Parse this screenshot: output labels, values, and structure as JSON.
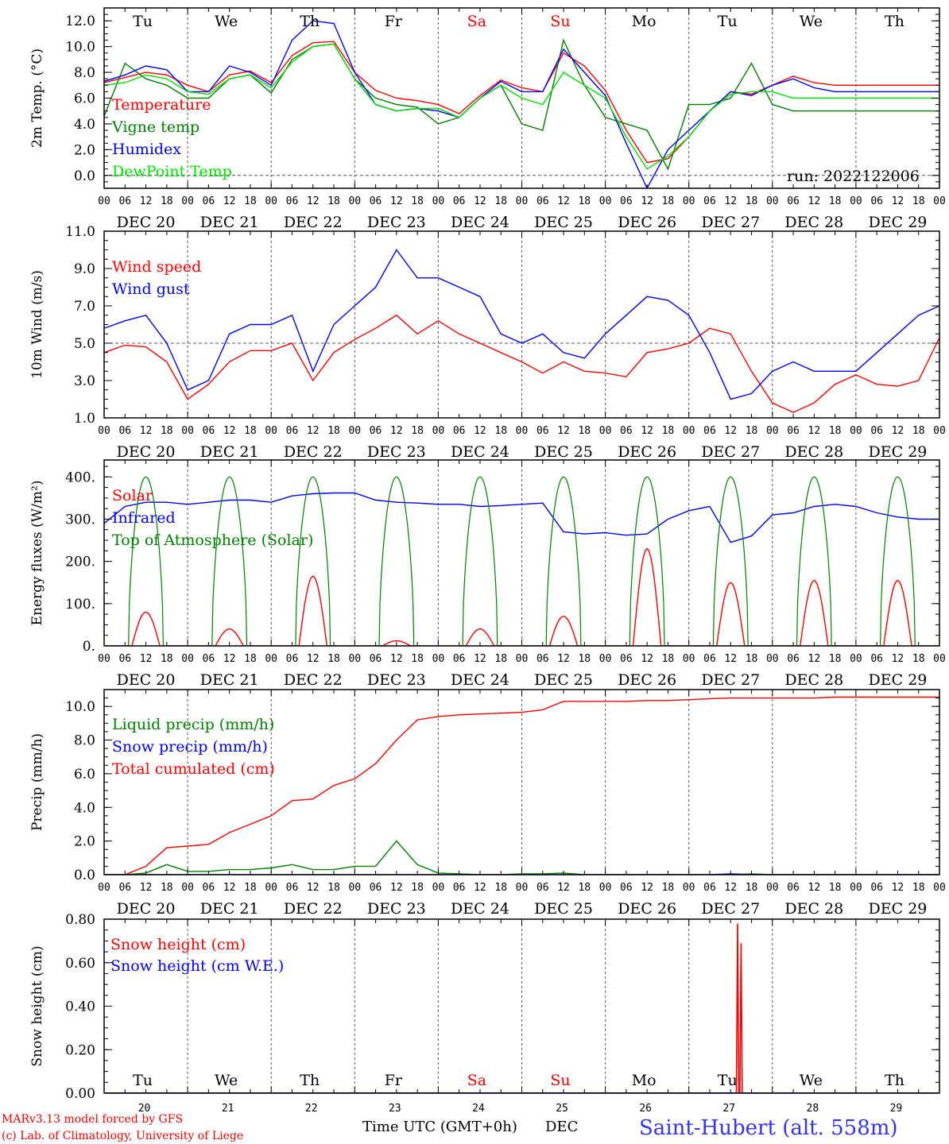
{
  "run_label": "run: 2022122006",
  "footer": {
    "credit_line1": "MARv3.13 model forced by GFS",
    "credit_line2": "(c) Lab. of Climatology, University of Liege",
    "xlabel": "Time UTC (GMT+0h)",
    "xunit": "DEC",
    "station": "Saint-Hubert (alt. 558m)"
  },
  "days": [
    {
      "abbr": "Tu",
      "date": "DEC 20",
      "num": "20",
      "weekend": false
    },
    {
      "abbr": "We",
      "date": "DEC 21",
      "num": "21",
      "weekend": false
    },
    {
      "abbr": "Th",
      "date": "DEC 22",
      "num": "22",
      "weekend": false
    },
    {
      "abbr": "Fr",
      "date": "DEC 23",
      "num": "23",
      "weekend": false
    },
    {
      "abbr": "Sa",
      "date": "DEC 24",
      "num": "24",
      "weekend": true
    },
    {
      "abbr": "Su",
      "date": "DEC 25",
      "num": "25",
      "weekend": true
    },
    {
      "abbr": "Mo",
      "date": "DEC 26",
      "num": "26",
      "weekend": false
    },
    {
      "abbr": "Tu",
      "date": "DEC 27",
      "num": "27",
      "weekend": false
    },
    {
      "abbr": "We",
      "date": "DEC 28",
      "num": "28",
      "weekend": false
    },
    {
      "abbr": "Th",
      "date": "DEC 29",
      "num": "29",
      "weekend": false
    }
  ],
  "hour_ticks": [
    "00",
    "06",
    "12",
    "18"
  ],
  "final_tick": "00",
  "colors": {
    "red": "#ff0000",
    "green": "#008000",
    "blue": "#0000ff",
    "lightgreen": "#00e000",
    "purple": "#800080",
    "weekend": "#ff0000",
    "station": "#3333ff"
  },
  "chart_data": [
    {
      "type": "line",
      "ylabel": "2m Temp. (°C)",
      "ylim": [
        -1,
        13
      ],
      "yticks": [
        0,
        2,
        4,
        6,
        8,
        10,
        12
      ],
      "ytick_labels": [
        "0.0",
        "2.0",
        "4.0",
        "6.0",
        "8.0",
        "10.0",
        "12.0"
      ],
      "dashed_ref": 0,
      "show_day_abbr_top": true,
      "x_hours": [
        0,
        6,
        12,
        18,
        24,
        30,
        36,
        42,
        48,
        54,
        60,
        66,
        72,
        78,
        84,
        90,
        96,
        102,
        108,
        114,
        120,
        126,
        132,
        138,
        144,
        150,
        156,
        162,
        168,
        174,
        180,
        186,
        192,
        198,
        204,
        210,
        216,
        222,
        228,
        234,
        240
      ],
      "series": [
        {
          "name": "Temperature",
          "color": "#ff0000",
          "values": [
            7.2,
            7.6,
            8.0,
            7.8,
            7.0,
            6.5,
            7.8,
            8.1,
            7.2,
            9.3,
            10.3,
            10.4,
            8.0,
            6.6,
            6.0,
            5.8,
            5.5,
            4.8,
            6.2,
            7.4,
            6.8,
            6.5,
            9.5,
            8.5,
            6.6,
            3.5,
            1.0,
            1.3,
            3.0,
            5.0,
            6.5,
            6.3,
            7.0,
            7.7,
            7.2,
            7.0,
            7.0,
            7.0,
            7.0,
            7.0,
            7.0
          ]
        },
        {
          "name": "Vigne temp",
          "color": "#008000",
          "values": [
            4.6,
            8.7,
            7.5,
            7.0,
            6.0,
            6.0,
            7.5,
            7.8,
            6.4,
            9.0,
            10.0,
            10.2,
            7.5,
            6.0,
            5.5,
            5.3,
            4.0,
            4.5,
            6.0,
            7.0,
            4.0,
            3.5,
            10.5,
            7.0,
            4.5,
            4.0,
            3.5,
            0.5,
            5.5,
            5.5,
            6.0,
            8.7,
            5.5,
            5.0,
            5.0,
            5.0,
            5.0,
            5.0,
            5.0,
            5.0,
            5.0
          ]
        },
        {
          "name": "Humidex",
          "color": "#0000ff",
          "values": [
            7.3,
            7.8,
            8.5,
            8.2,
            6.5,
            6.5,
            8.5,
            8.0,
            7.0,
            10.5,
            12.0,
            11.8,
            8.0,
            5.5,
            5.0,
            5.2,
            5.0,
            4.5,
            6.0,
            7.3,
            6.5,
            6.5,
            9.8,
            8.0,
            6.2,
            2.5,
            -1.0,
            2.0,
            3.5,
            5.0,
            6.5,
            6.2,
            7.0,
            7.5,
            6.8,
            6.5,
            6.5,
            6.5,
            6.5,
            6.5,
            6.5
          ]
        },
        {
          "name": "DewPoint Temp",
          "color": "#00e000",
          "values": [
            7.0,
            7.2,
            7.8,
            7.5,
            6.5,
            6.3,
            7.5,
            7.8,
            6.8,
            8.8,
            10.0,
            10.2,
            7.5,
            5.5,
            5.0,
            5.2,
            5.2,
            4.5,
            6.0,
            7.0,
            6.0,
            5.5,
            8.0,
            7.0,
            6.0,
            3.0,
            0.5,
            1.5,
            3.0,
            5.0,
            6.3,
            6.5,
            6.5,
            6.0,
            6.0,
            6.0,
            6.0,
            6.0,
            6.0,
            6.0,
            6.0
          ]
        }
      ],
      "legend": [
        "Temperature",
        "Vigne temp",
        "Humidex",
        "DewPoint Temp"
      ]
    },
    {
      "type": "line",
      "ylabel": "10m Wind (m/s)",
      "ylim": [
        1,
        11
      ],
      "yticks": [
        1,
        3,
        5,
        7,
        9,
        11
      ],
      "ytick_labels": [
        "1.0",
        "3.0",
        "5.0",
        "7.0",
        "9.0",
        "11.0"
      ],
      "dashed_ref": 5,
      "x_hours": [
        0,
        6,
        12,
        18,
        24,
        30,
        36,
        42,
        48,
        54,
        60,
        66,
        72,
        78,
        84,
        90,
        96,
        102,
        108,
        114,
        120,
        126,
        132,
        138,
        144,
        150,
        156,
        162,
        168,
        174,
        180,
        186,
        192,
        198,
        204,
        210,
        216,
        222,
        228,
        234,
        240
      ],
      "series": [
        {
          "name": "Wind speed",
          "color": "#ff0000",
          "values": [
            4.5,
            4.9,
            4.8,
            4.0,
            2.0,
            2.8,
            4.0,
            4.6,
            4.6,
            5.0,
            3.0,
            4.5,
            5.2,
            5.8,
            6.5,
            5.5,
            6.2,
            5.5,
            5.0,
            4.5,
            4.0,
            3.4,
            4.0,
            3.5,
            3.4,
            3.2,
            4.5,
            4.7,
            5.0,
            5.8,
            5.5,
            3.5,
            1.8,
            1.3,
            1.8,
            2.8,
            3.3,
            2.8,
            2.7,
            3.0,
            5.3
          ]
        },
        {
          "name": "Wind gust",
          "color": "#0000ff",
          "values": [
            5.8,
            6.2,
            6.5,
            5.0,
            2.5,
            3.0,
            5.5,
            6.0,
            6.0,
            6.5,
            3.5,
            6.0,
            7.0,
            8.0,
            10.0,
            8.5,
            8.5,
            8.0,
            7.5,
            5.5,
            5.0,
            5.5,
            4.5,
            4.2,
            5.5,
            6.5,
            7.5,
            7.3,
            6.5,
            4.5,
            2.0,
            2.3,
            3.5,
            4.0,
            3.5,
            3.5,
            3.5,
            4.5,
            5.5,
            6.5,
            7.0
          ]
        }
      ],
      "legend": [
        "Wind speed",
        "Wind gust"
      ]
    },
    {
      "type": "line",
      "ylabel": "Energy fluxes (W/m²)",
      "ylim": [
        0,
        440
      ],
      "yticks": [
        0,
        100,
        200,
        300,
        400
      ],
      "ytick_labels": [
        "0.",
        "100.",
        "200.",
        "300.",
        "400."
      ],
      "x_hours": [
        0,
        6,
        12,
        18,
        24,
        30,
        36,
        42,
        48,
        54,
        60,
        66,
        72,
        78,
        84,
        90,
        96,
        102,
        108,
        114,
        120,
        126,
        132,
        138,
        144,
        150,
        156,
        162,
        168,
        174,
        180,
        186,
        192,
        198,
        204,
        210,
        216,
        222,
        228,
        234,
        240
      ],
      "series": [
        {
          "name": "Solar",
          "color": "#ff0000",
          "peaks": [
            80,
            40,
            165,
            12,
            40,
            70,
            230,
            150,
            155,
            155
          ]
        },
        {
          "name": "Infrared",
          "color": "#0000ff",
          "values": [
            290,
            330,
            340,
            340,
            335,
            340,
            345,
            345,
            340,
            355,
            360,
            362,
            362,
            345,
            340,
            338,
            335,
            335,
            330,
            332,
            335,
            338,
            270,
            265,
            268,
            262,
            265,
            300,
            320,
            330,
            245,
            260,
            310,
            315,
            330,
            335,
            330,
            315,
            305,
            300,
            300
          ]
        },
        {
          "name": "Top of Atmosphere (Solar)",
          "color": "#008000",
          "peak": 400
        }
      ],
      "legend": [
        "Solar",
        "Infrared",
        "Top of Atmosphere (Solar)"
      ]
    },
    {
      "type": "line",
      "ylabel": "Precip (mm/h)",
      "ylim": [
        0,
        11
      ],
      "yticks": [
        0,
        2,
        4,
        6,
        8,
        10
      ],
      "ytick_labels": [
        "0.0",
        "2.0",
        "4.0",
        "6.0",
        "8.0",
        "10.0"
      ],
      "x_hours": [
        0,
        6,
        12,
        18,
        24,
        30,
        36,
        42,
        48,
        54,
        60,
        66,
        72,
        78,
        84,
        90,
        96,
        102,
        108,
        114,
        120,
        126,
        132,
        138,
        144,
        150,
        156,
        162,
        168,
        174,
        180,
        186,
        192,
        198,
        204,
        210,
        216,
        222,
        228,
        234,
        240
      ],
      "series": [
        {
          "name": "Liquid precip (mm/h)",
          "color": "#008000",
          "values": [
            0,
            0,
            0.1,
            0.6,
            0.2,
            0.2,
            0.3,
            0.3,
            0.4,
            0.6,
            0.3,
            0.3,
            0.5,
            0.5,
            2.0,
            0.6,
            0.1,
            0.05,
            0,
            0,
            0.05,
            0.05,
            0.1,
            0,
            0,
            0,
            0,
            0,
            0,
            0,
            0,
            0.05,
            0,
            0,
            0,
            0,
            0,
            0,
            0,
            0,
            0
          ]
        },
        {
          "name": "Snow precip (mm/h)",
          "color": "#0000ff",
          "values": [
            0,
            0,
            0,
            0,
            0,
            0,
            0,
            0,
            0,
            0,
            0,
            0,
            0,
            0,
            0,
            0,
            0,
            0,
            0,
            0,
            0,
            0,
            0,
            0,
            0,
            0,
            0,
            0,
            0,
            0,
            0.05,
            0,
            0,
            0,
            0,
            0,
            0,
            0,
            0,
            0,
            0
          ]
        },
        {
          "name": "Total cumulated (cm)",
          "color": "#ff0000",
          "values": [
            0,
            0,
            0.5,
            1.6,
            1.7,
            1.8,
            2.5,
            3.0,
            3.5,
            4.4,
            4.5,
            5.3,
            5.7,
            6.6,
            8.0,
            9.2,
            9.4,
            9.5,
            9.55,
            9.6,
            9.65,
            9.8,
            10.3,
            10.3,
            10.3,
            10.3,
            10.35,
            10.35,
            10.4,
            10.45,
            10.5,
            10.5,
            10.5,
            10.5,
            10.5,
            10.55,
            10.55,
            10.55,
            10.55,
            10.55,
            10.55
          ]
        }
      ],
      "legend": [
        "Liquid precip (mm/h)",
        "Snow precip (mm/h)",
        "Total cumulated (cm)"
      ]
    },
    {
      "type": "line",
      "ylabel": "Snow height (cm)",
      "ylim": [
        0,
        0.8
      ],
      "yticks": [
        0,
        0.2,
        0.4,
        0.6,
        0.8
      ],
      "ytick_labels": [
        "0.00",
        "0.20",
        "0.40",
        "0.60",
        "0.80"
      ],
      "show_day_abbr_bottom": true,
      "series": [
        {
          "name": "Snow height (cm)",
          "color": "#ff0000",
          "spikes": [
            {
              "hour": 182,
              "value": 0.78
            },
            {
              "hour": 183,
              "value": 0.69
            }
          ]
        },
        {
          "name": "Snow height (cm W.E.)",
          "color": "#0000ff",
          "values": [
            0
          ]
        }
      ],
      "legend": [
        "Snow height (cm)",
        "Snow height (cm W.E.)"
      ]
    }
  ]
}
